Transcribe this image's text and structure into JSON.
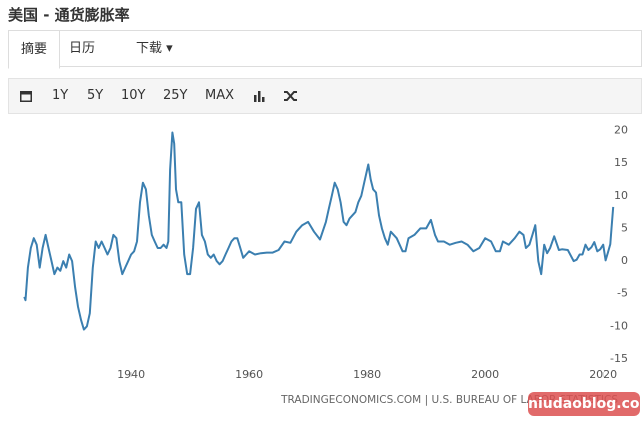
{
  "page": {
    "title": "美国 - 通货膨胀率",
    "tabs": [
      "摘要",
      "日历",
      "下载"
    ],
    "ranges": [
      "1Y",
      "5Y",
      "10Y",
      "25Y",
      "MAX"
    ],
    "source": "TRADINGECONOMICS.COM | U.S. BUREAU OF LABOR STATISTICS",
    "watermark": "niudaoblog.com"
  },
  "chart_data": {
    "type": "line",
    "color": "#3b7fb0",
    "grid": false,
    "y_axis_side": "right",
    "xlim": [
      1921,
      2022
    ],
    "ylim": [
      -17,
      21
    ],
    "xticks": [
      1940,
      1960,
      1980,
      2000,
      2020
    ],
    "yticks": [
      20,
      15,
      10,
      5,
      0,
      -5,
      -10,
      -15
    ],
    "x": [
      1921.9,
      1922.1,
      1922.5,
      1923,
      1923.5,
      1924,
      1924.5,
      1925,
      1925.5,
      1926,
      1926.5,
      1927,
      1927.5,
      1928,
      1928.5,
      1929,
      1929.5,
      1930,
      1930.5,
      1931,
      1931.5,
      1932,
      1932.5,
      1933,
      1933.5,
      1934,
      1934.5,
      1935,
      1935.5,
      1936,
      1936.5,
      1937,
      1937.5,
      1938,
      1938.5,
      1939,
      1939.5,
      1940,
      1940.5,
      1941,
      1941.5,
      1942,
      1942.5,
      1943,
      1943.5,
      1944,
      1944.5,
      1945,
      1945.5,
      1946,
      1946.3,
      1946.6,
      1947,
      1947.3,
      1947.6,
      1948,
      1948.5,
      1949,
      1949.5,
      1950,
      1950.5,
      1951,
      1951.5,
      1952,
      1952.5,
      1953,
      1953.5,
      1954,
      1954.5,
      1955,
      1955.5,
      1956,
      1956.5,
      1957,
      1957.5,
      1958,
      1958.5,
      1959,
      1959.5,
      1960,
      1961,
      1962,
      1963,
      1964,
      1965,
      1966,
      1967,
      1968,
      1969,
      1970,
      1971,
      1972,
      1973,
      1973.5,
      1974,
      1974.5,
      1975,
      1975.5,
      1976,
      1976.5,
      1977,
      1978,
      1978.5,
      1979,
      1979.5,
      1980.2,
      1980.6,
      1981,
      1981.5,
      1982,
      1982.5,
      1983,
      1983.5,
      1984,
      1985,
      1986,
      1986.5,
      1987,
      1988,
      1989,
      1990,
      1990.8,
      1991.5,
      1992,
      1993,
      1994,
      1995,
      1996,
      1997,
      1998,
      1999,
      2000,
      2001,
      2001.8,
      2002.5,
      2003,
      2004,
      2005,
      2005.8,
      2006.5,
      2006.9,
      2007.5,
      2008,
      2008.5,
      2009,
      2009.5,
      2010,
      2010.5,
      2011,
      2011.7,
      2012.5,
      2013,
      2014,
      2015,
      2015.5,
      2016,
      2016.5,
      2017,
      2017.5,
      2018,
      2018.5,
      2019,
      2019.5,
      2020,
      2020.4,
      2020.8,
      2021.2,
      2021.4,
      2021.7
    ],
    "values": [
      -5.5,
      -6,
      -1,
      2,
      3.5,
      2.5,
      -1,
      2,
      4,
      2,
      0,
      -2,
      -1,
      -1.5,
      0,
      -1,
      1,
      0,
      -4,
      -7,
      -9,
      -10.5,
      -10,
      -8,
      -1,
      3,
      2,
      3,
      2,
      1,
      2,
      4,
      3.5,
      0,
      -2,
      -1,
      0,
      1,
      1.5,
      3,
      9,
      12,
      11,
      7,
      4,
      3,
      2,
      2,
      2.5,
      2,
      3,
      14,
      19.7,
      18,
      11,
      9,
      9,
      1,
      -2,
      -2,
      2,
      8,
      9,
      4,
      3,
      1,
      0.5,
      1,
      0,
      -0.5,
      0,
      1,
      2,
      3,
      3.5,
      3.5,
      2,
      0.5,
      1,
      1.5,
      1,
      1.2,
      1.3,
      1.3,
      1.7,
      3,
      2.8,
      4.5,
      5.5,
      6,
      4.5,
      3.3,
      6,
      8,
      10,
      12,
      11,
      9,
      6,
      5.5,
      6.5,
      7.5,
      9,
      10,
      12,
      14.8,
      12.5,
      11,
      10.5,
      7,
      5,
      3.5,
      2.5,
      4.5,
      3.5,
      1.5,
      1.5,
      3.5,
      4,
      5,
      5,
      6.3,
      4,
      3,
      3,
      2.5,
      2.8,
      3,
      2.5,
      1.5,
      2,
      3.5,
      3,
      1.5,
      1.5,
      3,
      2.5,
      3.5,
      4.5,
      4,
      2,
      2.5,
      4,
      5.5,
      0,
      -2,
      2.5,
      1.2,
      2,
      3.8,
      1.7,
      1.8,
      1.7,
      0,
      0.2,
      1,
      1,
      2.5,
      1.7,
      2.1,
      2.9,
      1.5,
      1.8,
      2.5,
      0.1,
      1.3,
      2.6,
      5,
      8.3
    ]
  }
}
